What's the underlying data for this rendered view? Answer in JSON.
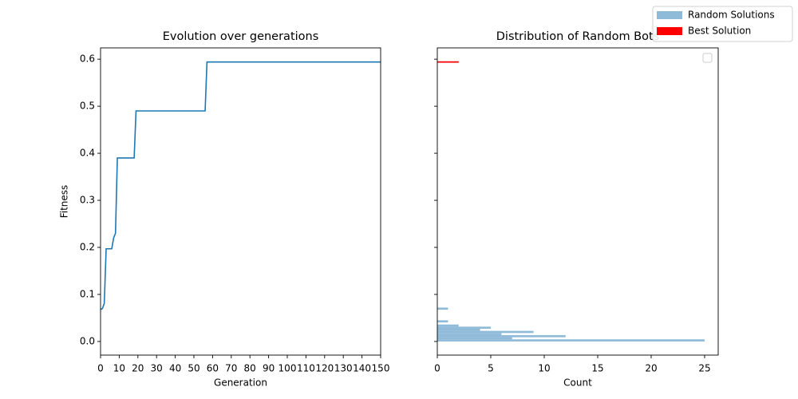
{
  "chart_data": [
    {
      "type": "line",
      "title": "Evolution over generations",
      "x_label": "Generation",
      "y_label": "Fitness",
      "x": [
        0,
        1,
        2,
        3,
        6,
        7,
        8,
        9,
        18,
        19,
        56,
        57,
        150
      ],
      "values": [
        0.068,
        0.07,
        0.081,
        0.197,
        0.197,
        0.22,
        0.23,
        0.39,
        0.39,
        0.49,
        0.49,
        0.594,
        0.594
      ],
      "color": "#1f77b4",
      "xlim": [
        0,
        150
      ],
      "xticks": [
        0,
        10,
        20,
        30,
        40,
        50,
        60,
        70,
        80,
        90,
        100,
        110,
        120,
        130,
        140,
        150
      ],
      "ylim": [
        -0.029,
        0.624
      ],
      "yticks": [
        {
          "value": 0,
          "label": "0.0"
        },
        0.1,
        0.2,
        0.3,
        0.4,
        0.5,
        0.6
      ]
    },
    {
      "type": "hbar_hist",
      "title": "Distribution of Random Bots",
      "x_label": "Count",
      "series": [
        {
          "name": "Random Solutions",
          "color": "#8fbbd9",
          "bins": [
            0,
            0.0045,
            0.009,
            0.0135,
            0.018,
            0.0225,
            0.027,
            0.0315,
            0.036,
            0.0405,
            0.045,
            0.0495,
            0.054,
            0.0585,
            0.063,
            0.0675,
            0.072
          ],
          "counts": [
            25,
            7,
            12,
            6,
            9,
            4,
            5,
            2,
            0,
            1,
            0,
            0,
            0,
            0,
            0,
            1
          ]
        },
        {
          "name": "Best Solution",
          "color": "#ff0000",
          "bins": [
            0.5925,
            0.5955
          ],
          "counts": [
            2
          ]
        }
      ],
      "xlim": [
        0,
        26.27
      ],
      "xticks": [
        0,
        5,
        10,
        15,
        20,
        25
      ],
      "ylim": [
        -0.029,
        0.624
      ],
      "yticks": [
        0,
        0.1,
        0.2,
        0.3,
        0.4,
        0.5,
        0.6
      ],
      "legend": "upper right"
    }
  ]
}
